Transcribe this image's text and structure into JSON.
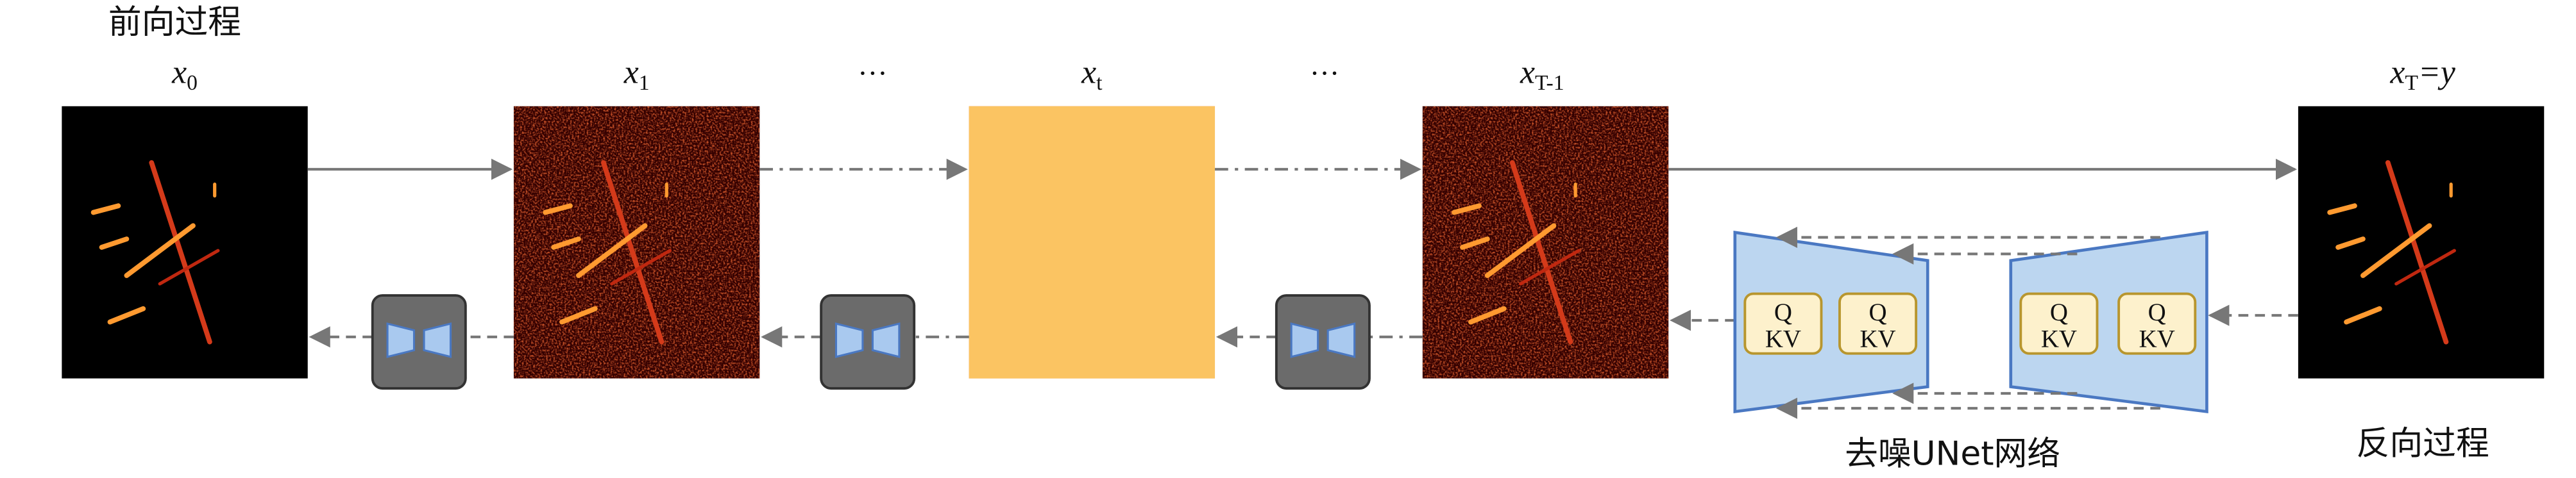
{
  "header": {
    "forward": "前向过程",
    "reverse": "反向过程"
  },
  "states": [
    {
      "var": "x",
      "sub": "0"
    },
    {
      "var": "x",
      "sub": "1"
    },
    {
      "ellipsis": "···"
    },
    {
      "var": "x",
      "sub": "t"
    },
    {
      "ellipsis": "···"
    },
    {
      "var": "x",
      "sub": "T-1"
    },
    {
      "var": "x",
      "sub": "T",
      "suffix": "=y"
    }
  ],
  "unet": {
    "label": "去噪UNet网络",
    "blocks": [
      {
        "q": "Q",
        "kv": "KV"
      },
      {
        "q": "Q",
        "kv": "KV"
      },
      {
        "q": "Q",
        "kv": "KV"
      },
      {
        "q": "Q",
        "kv": "KV"
      }
    ]
  }
}
